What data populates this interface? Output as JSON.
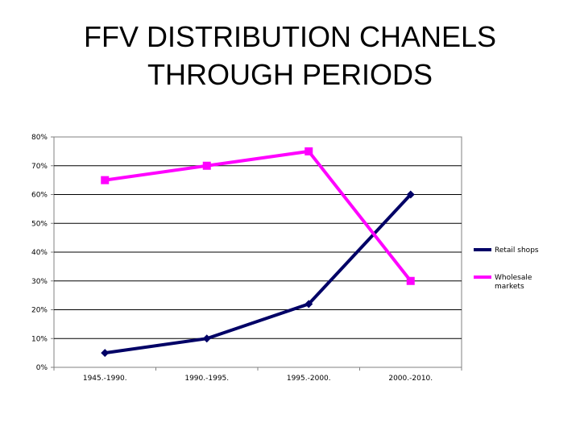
{
  "title_lines": [
    "FFV DISTRIBUTION CHANELS",
    "THROUGH PERIODS"
  ],
  "chart_data": {
    "type": "line",
    "title": "FFV DISTRIBUTION CHANELS THROUGH PERIODS",
    "categories": [
      "1945.-1990.",
      "1990.-1995.",
      "1995.-2000.",
      "2000.-2010."
    ],
    "y_ticks": [
      "0%",
      "10%",
      "20%",
      "30%",
      "40%",
      "50%",
      "60%",
      "70%",
      "80%"
    ],
    "ylim": [
      0,
      80
    ],
    "grid": true,
    "legend_position": "right",
    "series": [
      {
        "name": "Retail shops",
        "values": [
          5,
          10,
          22,
          60
        ],
        "color": "#000066",
        "marker": "diamond"
      },
      {
        "name": "Wholesale markets",
        "legend_lines": [
          "Wholesale",
          "markets"
        ],
        "values": [
          65,
          70,
          75,
          30
        ],
        "color": "#ff00ff",
        "marker": "square"
      }
    ]
  }
}
